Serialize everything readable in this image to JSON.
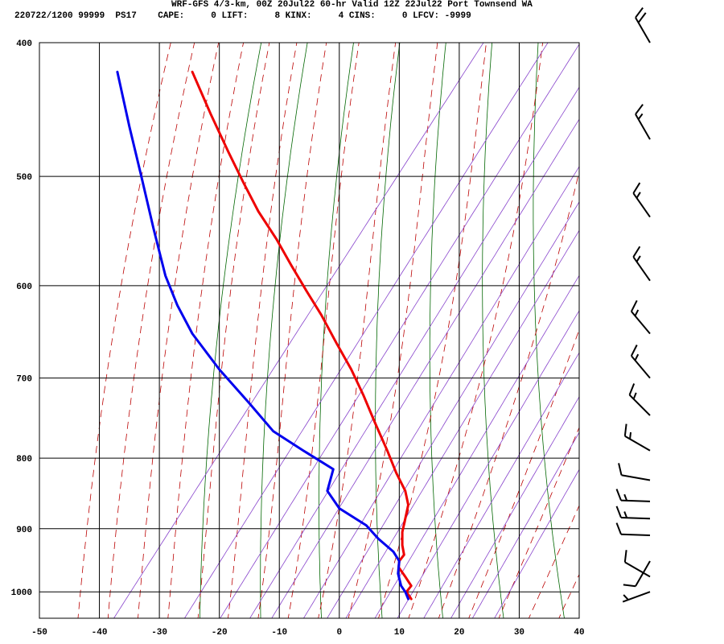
{
  "header": {
    "line1": "WRF-GFS 4/3-km, 00Z 20Jul22 60-hr Valid 12Z 22Jul22 Port Townsend WA",
    "line2": "220722/1200 99999  PS17    CAPE:     0 LIFT:     8 KINX:     4 CINS:     0 LFCV: -9999"
  },
  "chart_data": {
    "type": "line",
    "title": "WRF-GFS 4/3-km, 00Z 20Jul22 60-hr Valid 12Z 22Jul22 Port Townsend WA",
    "xlabel": "",
    "ylabel": "",
    "x_ticks": [
      -50,
      -40,
      -30,
      -20,
      -10,
      0,
      10,
      20,
      30,
      40
    ],
    "y_ticks": [
      400,
      500,
      600,
      700,
      800,
      900,
      1000
    ],
    "xlim": [
      -50,
      40
    ],
    "ylim": [
      1045,
      400
    ],
    "y_scale": "log",
    "skew": "skew-t",
    "grid": true,
    "series": [
      {
        "color": "#ee0000",
        "points": [
          [
            -24.5,
            420
          ],
          [
            -21.5,
            450
          ],
          [
            -18.5,
            480
          ],
          [
            -16,
            505
          ],
          [
            -13.5,
            530
          ],
          [
            -10.5,
            555
          ],
          [
            -8,
            580
          ],
          [
            -5.5,
            605
          ],
          [
            -3,
            630
          ],
          [
            -0.5,
            660
          ],
          [
            2,
            690
          ],
          [
            4,
            720
          ],
          [
            6,
            755
          ],
          [
            8,
            790
          ],
          [
            9.5,
            820
          ],
          [
            11,
            845
          ],
          [
            11.5,
            865
          ],
          [
            11,
            885
          ],
          [
            10.5,
            905
          ],
          [
            10.5,
            925
          ],
          [
            10.8,
            940
          ],
          [
            10,
            950
          ],
          [
            9.9,
            960
          ],
          [
            11,
            975
          ],
          [
            12,
            990
          ],
          [
            11.2,
            1000
          ],
          [
            12,
            1012
          ]
        ]
      },
      {
        "color": "#0000ee",
        "points": [
          [
            -37,
            420
          ],
          [
            -35,
            460
          ],
          [
            -33,
            500
          ],
          [
            -31,
            545
          ],
          [
            -29,
            590
          ],
          [
            -27,
            620
          ],
          [
            -24.5,
            650
          ],
          [
            -20,
            690
          ],
          [
            -15,
            730
          ],
          [
            -11,
            765
          ],
          [
            -6,
            790
          ],
          [
            -1,
            815
          ],
          [
            -2,
            845
          ],
          [
            0,
            870
          ],
          [
            4.5,
            895
          ],
          [
            6.5,
            915
          ],
          [
            9,
            935
          ],
          [
            10,
            950
          ],
          [
            9.8,
            970
          ],
          [
            10.3,
            990
          ],
          [
            11,
            1000
          ],
          [
            11.5,
            1012
          ]
        ]
      }
    ],
    "wind_barbs": [
      {
        "p": 400,
        "dir": 330,
        "kt": 20
      },
      {
        "p": 470,
        "dir": 330,
        "kt": 15
      },
      {
        "p": 535,
        "dir": 325,
        "kt": 15
      },
      {
        "p": 595,
        "dir": 325,
        "kt": 15
      },
      {
        "p": 650,
        "dir": 320,
        "kt": 15
      },
      {
        "p": 700,
        "dir": 320,
        "kt": 15
      },
      {
        "p": 745,
        "dir": 315,
        "kt": 15
      },
      {
        "p": 790,
        "dir": 300,
        "kt": 15
      },
      {
        "p": 830,
        "dir": 280,
        "kt": 10
      },
      {
        "p": 860,
        "dir": 272,
        "kt": 15
      },
      {
        "p": 885,
        "dir": 272,
        "kt": 15
      },
      {
        "p": 910,
        "dir": 272,
        "kt": 10
      },
      {
        "p": 950,
        "dir": 210,
        "kt": 10
      },
      {
        "p": 975,
        "dir": 300,
        "kt": 10
      },
      {
        "p": 1000,
        "dir": 250,
        "kt": 5
      }
    ],
    "colors": {
      "isotherm_grid": "#000000",
      "isobar_grid": "#000000",
      "dry_adiabat": "#006600",
      "moist_adiabat": "#bb0000",
      "mixing_ratio": "#8844cc",
      "temperature": "#ee0000",
      "dewpoint": "#0000ee"
    }
  }
}
